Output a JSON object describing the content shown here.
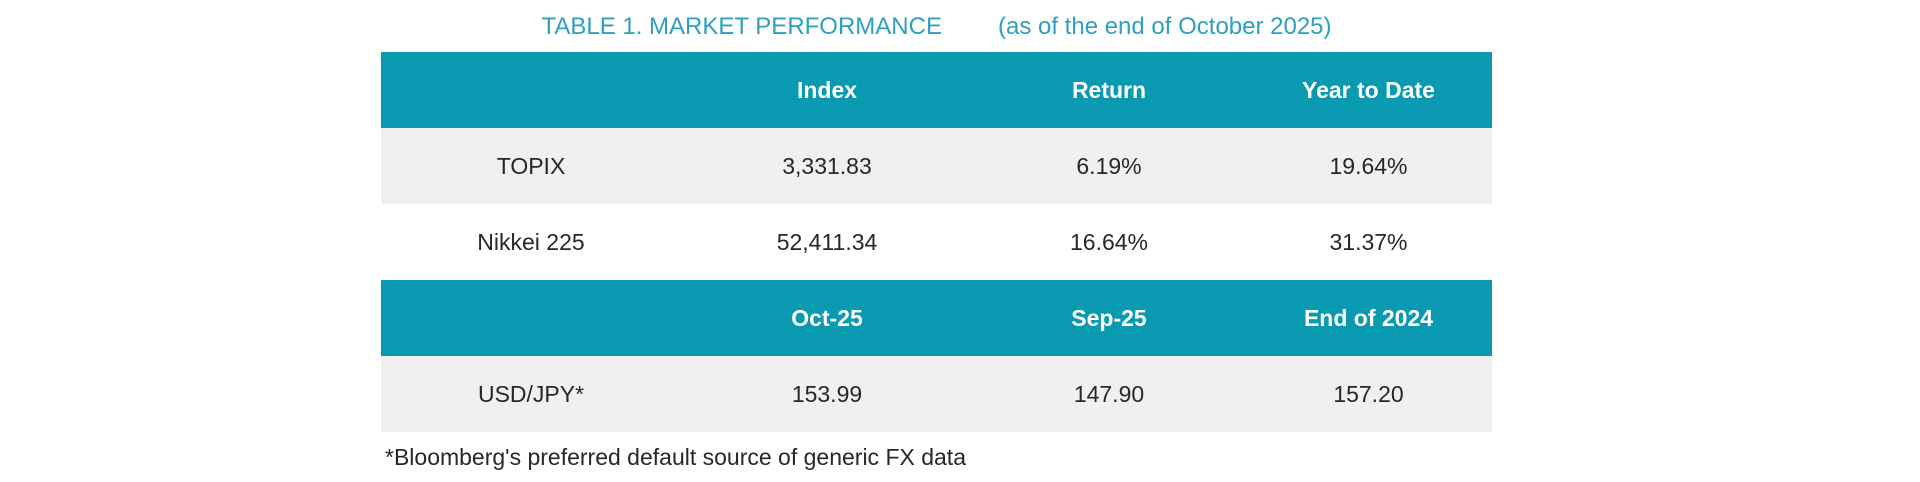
{
  "title": {
    "main": "TABLE 1. MARKET PERFORMANCE",
    "suffix": "(as of the end of October 2025)"
  },
  "colors": {
    "header_bg": "#0999B0",
    "alt_row_bg": "#F1F0F0",
    "title_text": "#2EA0BF",
    "header_text": "#FFFFFF",
    "body_text": "#272727"
  },
  "chart_data": {
    "type": "table",
    "title": "TABLE 1. MARKET PERFORMANCE (as of the end of October 2025)",
    "sections": [
      {
        "columns": [
          "",
          "Index",
          "Return",
          "Year to Date"
        ],
        "rows": [
          [
            "TOPIX",
            "3,331.83",
            "6.19%",
            "19.64%"
          ],
          [
            "Nikkei 225",
            "52,411.34",
            "16.64%",
            "31.37%"
          ]
        ],
        "numeric": {
          "TOPIX": {
            "index": 3331.83,
            "return_pct": 6.19,
            "ytd_pct": 19.64
          },
          "Nikkei 225": {
            "index": 52411.34,
            "return_pct": 16.64,
            "ytd_pct": 31.37
          }
        }
      },
      {
        "columns": [
          "",
          "Oct-25",
          "Sep-25",
          "End of 2024"
        ],
        "rows": [
          [
            "USD/JPY*",
            "153.99",
            "147.90",
            "157.20"
          ]
        ],
        "numeric": {
          "USD/JPY*": {
            "oct_25": 153.99,
            "sep_25": 147.9,
            "end_of_2024": 157.2
          }
        }
      }
    ]
  },
  "footnote": "*Bloomberg's preferred default source of generic FX data"
}
